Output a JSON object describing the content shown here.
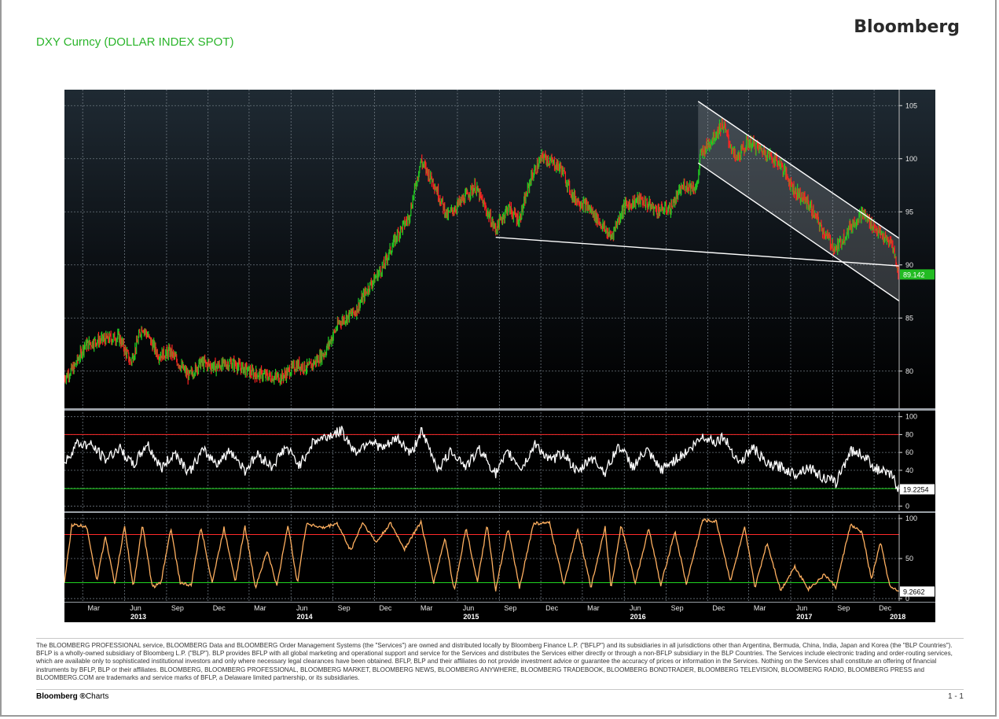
{
  "header": {
    "title": "DXY Curncy (DOLLAR INDEX SPOT)",
    "brand": "Bloomberg"
  },
  "colors": {
    "background": "#000000",
    "up_bar": "#22cc22",
    "down_bar": "#ff2222",
    "channel_line": "#ffffff",
    "rsi_line": "#ffffff",
    "stoch_line": "#ffb060",
    "overbought_line": "#ff2a2a",
    "oversold_line": "#22dd22",
    "last_price_tag": "#22bb22"
  },
  "chart_data": [
    {
      "type": "line",
      "title": "DXY Curncy (DOLLAR INDEX SPOT)",
      "xlabel": "",
      "ylabel": "",
      "ylim": [
        76.5,
        106.5
      ],
      "yticks": [
        80,
        85,
        90,
        95,
        100,
        105
      ],
      "grid": true,
      "x_months": [
        "Mar",
        "Jun",
        "Sep",
        "Dec",
        "Mar",
        "Jun",
        "Sep",
        "Dec",
        "Mar",
        "Jun",
        "Sep",
        "Dec",
        "Mar",
        "Jun",
        "Sep",
        "Dec",
        "Mar",
        "Jun",
        "Sep",
        "Dec"
      ],
      "x_years": [
        "2013",
        "2014",
        "2015",
        "2016",
        "2017",
        "2018"
      ],
      "x_range": [
        "2013-01-20",
        "2018-01-25"
      ],
      "series": [
        {
          "style": "daily price bars",
          "points": [
            [
              "2013-01-20",
              79.4
            ],
            [
              "2013-02-10",
              80.3
            ],
            [
              "2013-03-05",
              82.4
            ],
            [
              "2013-04-05",
              82.9
            ],
            [
              "2013-05-20",
              83.2
            ],
            [
              "2013-06-15",
              80.8
            ],
            [
              "2013-07-10",
              84.2
            ],
            [
              "2013-08-15",
              81.5
            ],
            [
              "2013-09-10",
              81.8
            ],
            [
              "2013-10-20",
              79.5
            ],
            [
              "2013-11-15",
              80.8
            ],
            [
              "2013-12-20",
              80.4
            ],
            [
              "2014-01-20",
              80.8
            ],
            [
              "2014-03-10",
              79.8
            ],
            [
              "2014-04-15",
              79.5
            ],
            [
              "2014-05-10",
              79.4
            ],
            [
              "2014-06-15",
              80.6
            ],
            [
              "2014-07-10",
              80.3
            ],
            [
              "2014-08-15",
              81.8
            ],
            [
              "2014-09-15",
              84.6
            ],
            [
              "2014-10-20",
              85.6
            ],
            [
              "2014-11-20",
              88.0
            ],
            [
              "2014-12-20",
              89.8
            ],
            [
              "2015-01-20",
              92.8
            ],
            [
              "2015-02-15",
              94.5
            ],
            [
              "2015-03-13",
              99.8
            ],
            [
              "2015-04-10",
              97.8
            ],
            [
              "2015-05-10",
              94.6
            ],
            [
              "2015-06-10",
              96.0
            ],
            [
              "2015-07-10",
              97.4
            ],
            [
              "2015-08-24",
              93.3
            ],
            [
              "2015-09-20",
              95.4
            ],
            [
              "2015-10-15",
              94.2
            ],
            [
              "2015-11-10",
              98.2
            ],
            [
              "2015-12-05",
              100.2
            ],
            [
              "2016-01-15",
              99.1
            ],
            [
              "2016-02-10",
              96.4
            ],
            [
              "2016-03-15",
              95.4
            ],
            [
              "2016-05-03",
              92.6
            ],
            [
              "2016-06-01",
              95.5
            ],
            [
              "2016-07-05",
              96.2
            ],
            [
              "2016-08-10",
              95.2
            ],
            [
              "2016-09-10",
              95.3
            ],
            [
              "2016-10-10",
              97.5
            ],
            [
              "2016-11-08",
              97.3
            ],
            [
              "2016-11-15",
              100.3
            ],
            [
              "2016-12-10",
              101.8
            ],
            [
              "2017-01-03",
              103.3
            ],
            [
              "2017-02-01",
              99.9
            ],
            [
              "2017-03-01",
              101.6
            ],
            [
              "2017-04-10",
              100.5
            ],
            [
              "2017-05-10",
              99.5
            ],
            [
              "2017-06-10",
              97.0
            ],
            [
              "2017-07-10",
              95.8
            ],
            [
              "2017-08-10",
              93.3
            ],
            [
              "2017-09-08",
              91.4
            ],
            [
              "2017-10-10",
              93.6
            ],
            [
              "2017-11-05",
              94.9
            ],
            [
              "2017-12-05",
              93.4
            ],
            [
              "2017-12-28",
              92.3
            ],
            [
              "2018-01-10",
              92.0
            ],
            [
              "2018-01-24",
              89.14
            ]
          ]
        }
      ],
      "trendlines": [
        {
          "from": [
            "2015-08-24",
            92.6
          ],
          "to": [
            "2018-01-25",
            89.9
          ]
        },
        {
          "from": [
            "2016-11-10",
            105.4
          ],
          "to": [
            "2018-01-25",
            92.5
          ]
        },
        {
          "from": [
            "2016-11-10",
            99.6
          ],
          "to": [
            "2018-01-25",
            86.6
          ]
        }
      ],
      "last_value": "89.142"
    },
    {
      "type": "line",
      "ylim": [
        -5,
        105
      ],
      "yticks": [
        0,
        20,
        40,
        60,
        80,
        100
      ],
      "reference_lines": [
        80,
        19.5
      ],
      "series": [
        {
          "style": "oscillator",
          "points": [
            [
              "2013-01-20",
              47
            ],
            [
              "2013-02-15",
              70
            ],
            [
              "2013-03-20",
              68
            ],
            [
              "2013-04-20",
              52
            ],
            [
              "2013-05-20",
              65
            ],
            [
              "2013-06-20",
              45
            ],
            [
              "2013-07-20",
              70
            ],
            [
              "2013-08-20",
              42
            ],
            [
              "2013-09-20",
              60
            ],
            [
              "2013-10-20",
              38
            ],
            [
              "2013-11-20",
              62
            ],
            [
              "2013-12-20",
              48
            ],
            [
              "2014-01-20",
              62
            ],
            [
              "2014-02-20",
              40
            ],
            [
              "2014-03-20",
              58
            ],
            [
              "2014-04-20",
              44
            ],
            [
              "2014-05-20",
              66
            ],
            [
              "2014-06-20",
              46
            ],
            [
              "2014-07-20",
              72
            ],
            [
              "2014-08-20",
              78
            ],
            [
              "2014-09-20",
              84
            ],
            [
              "2014-10-20",
              60
            ],
            [
              "2014-11-20",
              74
            ],
            [
              "2014-12-20",
              64
            ],
            [
              "2015-01-20",
              76
            ],
            [
              "2015-02-20",
              58
            ],
            [
              "2015-03-13",
              84
            ],
            [
              "2015-04-20",
              42
            ],
            [
              "2015-05-20",
              62
            ],
            [
              "2015-06-20",
              44
            ],
            [
              "2015-07-20",
              64
            ],
            [
              "2015-08-24",
              36
            ],
            [
              "2015-09-20",
              60
            ],
            [
              "2015-10-20",
              42
            ],
            [
              "2015-11-20",
              70
            ],
            [
              "2015-12-20",
              50
            ],
            [
              "2016-01-20",
              60
            ],
            [
              "2016-02-20",
              36
            ],
            [
              "2016-03-20",
              55
            ],
            [
              "2016-04-20",
              38
            ],
            [
              "2016-05-20",
              68
            ],
            [
              "2016-06-20",
              44
            ],
            [
              "2016-07-20",
              62
            ],
            [
              "2016-08-20",
              40
            ],
            [
              "2016-09-20",
              52
            ],
            [
              "2016-10-20",
              62
            ],
            [
              "2016-11-20",
              78
            ],
            [
              "2016-12-20",
              72
            ],
            [
              "2017-01-03",
              78
            ],
            [
              "2017-02-10",
              48
            ],
            [
              "2017-03-10",
              66
            ],
            [
              "2017-04-10",
              46
            ],
            [
              "2017-05-10",
              44
            ],
            [
              "2017-06-10",
              36
            ],
            [
              "2017-07-10",
              44
            ],
            [
              "2017-08-10",
              32
            ],
            [
              "2017-09-08",
              26
            ],
            [
              "2017-10-10",
              62
            ],
            [
              "2017-11-05",
              58
            ],
            [
              "2017-12-05",
              42
            ],
            [
              "2017-12-28",
              36
            ],
            [
              "2018-01-10",
              34
            ],
            [
              "2018-01-24",
              19.2254
            ]
          ]
        }
      ],
      "last_value": "19.2254"
    },
    {
      "type": "line",
      "ylim": [
        -3,
        105
      ],
      "yticks": [
        0,
        50,
        100
      ],
      "reference_lines": [
        80,
        20
      ],
      "series": [
        {
          "style": "stochastic oscillator",
          "points": [
            [
              "2013-01-20",
              20
            ],
            [
              "2013-02-05",
              92
            ],
            [
              "2013-03-10",
              90
            ],
            [
              "2013-04-01",
              22
            ],
            [
              "2013-04-20",
              78
            ],
            [
              "2013-05-10",
              18
            ],
            [
              "2013-06-01",
              90
            ],
            [
              "2013-06-20",
              14
            ],
            [
              "2013-07-10",
              92
            ],
            [
              "2013-08-01",
              14
            ],
            [
              "2013-08-20",
              20
            ],
            [
              "2013-09-10",
              88
            ],
            [
              "2013-10-01",
              20
            ],
            [
              "2013-10-25",
              16
            ],
            [
              "2013-11-15",
              90
            ],
            [
              "2013-12-10",
              20
            ],
            [
              "2014-01-05",
              88
            ],
            [
              "2014-01-30",
              22
            ],
            [
              "2014-02-20",
              90
            ],
            [
              "2014-03-15",
              14
            ],
            [
              "2014-04-10",
              60
            ],
            [
              "2014-05-01",
              15
            ],
            [
              "2014-05-25",
              92
            ],
            [
              "2014-06-15",
              20
            ],
            [
              "2014-07-05",
              94
            ],
            [
              "2014-08-10",
              88
            ],
            [
              "2014-09-10",
              94
            ],
            [
              "2014-10-10",
              60
            ],
            [
              "2014-11-05",
              95
            ],
            [
              "2014-12-05",
              70
            ],
            [
              "2015-01-05",
              94
            ],
            [
              "2015-02-05",
              62
            ],
            [
              "2015-03-13",
              96
            ],
            [
              "2015-04-10",
              20
            ],
            [
              "2015-05-05",
              76
            ],
            [
              "2015-05-25",
              10
            ],
            [
              "2015-06-20",
              88
            ],
            [
              "2015-07-15",
              20
            ],
            [
              "2015-08-05",
              92
            ],
            [
              "2015-08-24",
              10
            ],
            [
              "2015-09-20",
              88
            ],
            [
              "2015-10-15",
              14
            ],
            [
              "2015-11-15",
              94
            ],
            [
              "2015-12-20",
              94
            ],
            [
              "2016-01-20",
              18
            ],
            [
              "2016-02-20",
              86
            ],
            [
              "2016-03-20",
              14
            ],
            [
              "2016-04-20",
              90
            ],
            [
              "2016-05-03",
              12
            ],
            [
              "2016-05-25",
              92
            ],
            [
              "2016-06-25",
              20
            ],
            [
              "2016-07-25",
              88
            ],
            [
              "2016-08-20",
              16
            ],
            [
              "2016-09-20",
              84
            ],
            [
              "2016-10-15",
              18
            ],
            [
              "2016-11-20",
              98
            ],
            [
              "2016-12-20",
              96
            ],
            [
              "2017-01-20",
              22
            ],
            [
              "2017-02-20",
              88
            ],
            [
              "2017-03-15",
              14
            ],
            [
              "2017-04-10",
              70
            ],
            [
              "2017-05-10",
              10
            ],
            [
              "2017-06-10",
              40
            ],
            [
              "2017-07-10",
              12
            ],
            [
              "2017-08-15",
              30
            ],
            [
              "2017-09-08",
              14
            ],
            [
              "2017-10-10",
              92
            ],
            [
              "2017-11-05",
              82
            ],
            [
              "2017-11-25",
              24
            ],
            [
              "2017-12-15",
              70
            ],
            [
              "2018-01-05",
              14
            ],
            [
              "2018-01-24",
              9.2662
            ]
          ]
        }
      ],
      "last_value": "9.2662"
    }
  ],
  "disclaimer": "The BLOOMBERG PROFESSIONAL service, BLOOMBERG Data and BLOOMBERG Order Management Systems (the \"Services\") are owned and distributed locally by Bloomberg Finance L.P. (\"BFLP\") and its subsidiaries in all jurisdictions other than Argentina, Bermuda, China, India, Japan and Korea (the \"BLP Countries\"). BFLP is a wholly-owned subsidiary of Bloomberg L.P. (\"BLP\"). BLP provides BFLP with all global marketing and operational support and service for the Services and distributes the Services either directly or through a non-BFLP subsidiary in the BLP Countries. The Services include electronic trading and order-routing services, which are available only to sophisticated institutional investors and only where necessary legal clearances have been obtained. BFLP, BLP and their affiliates do not provide investment advice or guarantee the accuracy of prices or information in the Services. Nothing on the Services shall constitute an offering of financial instruments by BFLP, BLP or their affiliates. BLOOMBERG, BLOOMBERG PROFESSIONAL, BLOOMBERG MARKET, BLOOMBERG NEWS, BLOOMBERG ANYWHERE, BLOOMBERG TRADEBOOK, BLOOMBERG BONDTRADER, BLOOMBERG TELEVISION, BLOOMBERG RADIO, BLOOMBERG PRESS and BLOOMBERG.COM are trademarks and service marks of BFLP, a Delaware limited partnership, or its subsidiaries.",
  "footer": {
    "brand": "Bloomberg ®",
    "product": "Charts",
    "page": "1 - 1"
  }
}
